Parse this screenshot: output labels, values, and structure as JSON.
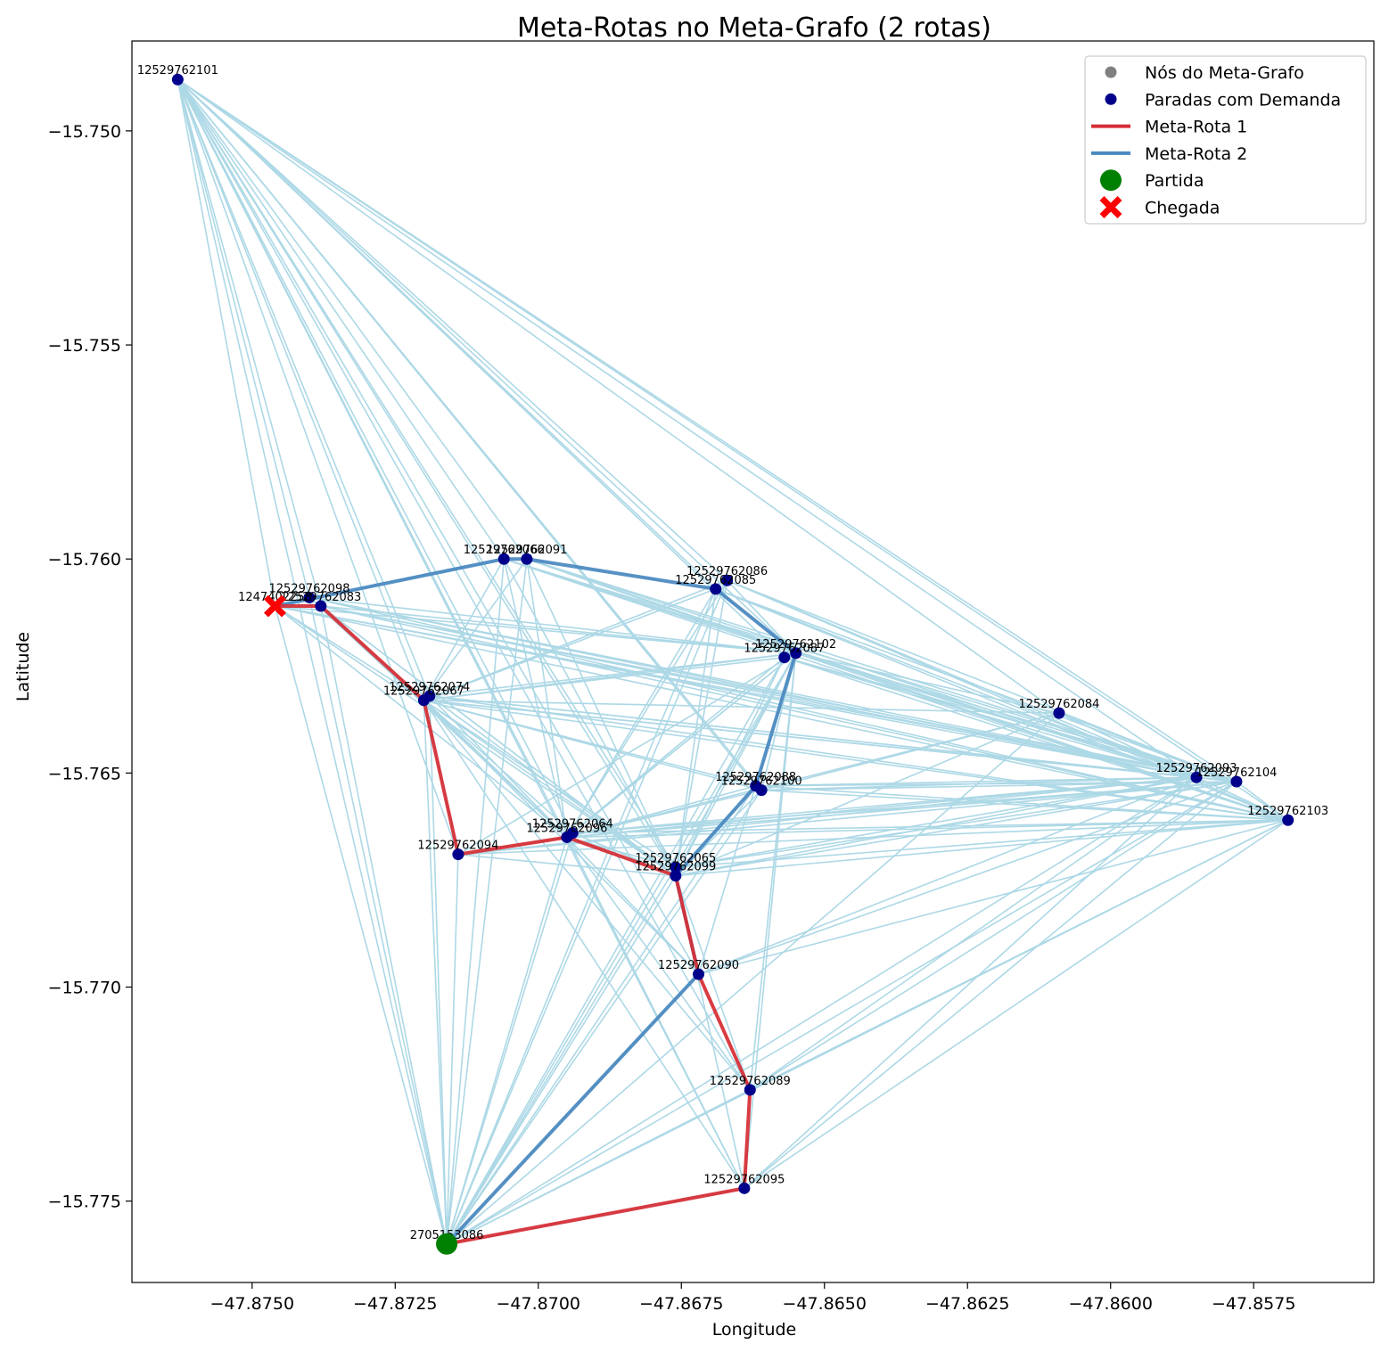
{
  "chart_data": {
    "type": "scatter",
    "title": "Meta-Rotas no Meta-Grafo (2 rotas)",
    "xlabel": "Longitude",
    "ylabel": "Latitude",
    "xlim": [
      -47.8771,
      -47.8554
    ],
    "ylim": [
      -15.7769,
      -15.7479
    ],
    "x_ticks": [
      -47.875,
      -47.8725,
      -47.87,
      -47.8675,
      -47.865,
      -47.8625,
      -47.86,
      -47.8575
    ],
    "x_tick_labels": [
      "−47.8750",
      "−47.8725",
      "−47.8700",
      "−47.8675",
      "−47.8650",
      "−47.8625",
      "−47.8600",
      "−47.8575"
    ],
    "y_ticks": [
      -15.75,
      -15.755,
      -15.76,
      -15.765,
      -15.77,
      -15.775
    ],
    "y_tick_labels": [
      "−15.750",
      "−15.755",
      "−15.760",
      "−15.765",
      "−15.770",
      "−15.775"
    ],
    "grid": false,
    "legend_position": "top-right",
    "legend": [
      {
        "label": "Nós do Meta-Grafo",
        "kind": "dot",
        "color": "#808080"
      },
      {
        "label": "Paradas com Demanda",
        "kind": "dot",
        "color": "#00008b"
      },
      {
        "label": "Meta-Rota 1",
        "kind": "line",
        "color": "#d62d35"
      },
      {
        "label": "Meta-Rota 2",
        "kind": "line",
        "color": "#4a89c0"
      },
      {
        "label": "Partida",
        "kind": "bigdot",
        "color": "#008000"
      },
      {
        "label": "Chegada",
        "kind": "cross",
        "color": "#ff0000"
      }
    ],
    "colors": {
      "edges": "#add8e6",
      "demand": "#00008b",
      "route1": "#d62d35",
      "route2": "#4a89c0",
      "start": "#008000",
      "end": "#ff0000"
    },
    "nodes": [
      {
        "id": "12529762101",
        "x": -47.8763,
        "y": -15.7488
      },
      {
        "id": "12529762098",
        "x": -47.874,
        "y": -15.7609
      },
      {
        "id": "12529762083",
        "x": -47.8738,
        "y": -15.7611
      },
      {
        "id": "1247402258",
        "x": -47.8746,
        "y": -15.7611
      },
      {
        "id": "12529762066",
        "x": -47.8706,
        "y": -15.76
      },
      {
        "id": "12529762091",
        "x": -47.8702,
        "y": -15.76
      },
      {
        "id": "12529762086",
        "x": -47.8667,
        "y": -15.7605
      },
      {
        "id": "12529762085",
        "x": -47.8669,
        "y": -15.7607
      },
      {
        "id": "12529762102",
        "x": -47.8655,
        "y": -15.7622
      },
      {
        "id": "12529762087",
        "x": -47.8657,
        "y": -15.7623
      },
      {
        "id": "12529762074",
        "x": -47.8719,
        "y": -15.7632
      },
      {
        "id": "12529762067",
        "x": -47.872,
        "y": -15.7633
      },
      {
        "id": "12529762084",
        "x": -47.8609,
        "y": -15.7636
      },
      {
        "id": "12529762088",
        "x": -47.8662,
        "y": -15.7653
      },
      {
        "id": "12529762100",
        "x": -47.8661,
        "y": -15.7654
      },
      {
        "id": "12529762093",
        "x": -47.8585,
        "y": -15.7651
      },
      {
        "id": "12529762104",
        "x": -47.8578,
        "y": -15.7652
      },
      {
        "id": "12529762103",
        "x": -47.8569,
        "y": -15.7661
      },
      {
        "id": "12529762064",
        "x": -47.8694,
        "y": -15.7664
      },
      {
        "id": "12529762096",
        "x": -47.8695,
        "y": -15.7665
      },
      {
        "id": "12529762094",
        "x": -47.8714,
        "y": -15.7669
      },
      {
        "id": "12529762065",
        "x": -47.8676,
        "y": -15.7672
      },
      {
        "id": "12529762099",
        "x": -47.8676,
        "y": -15.7674
      },
      {
        "id": "12529762090",
        "x": -47.8672,
        "y": -15.7697
      },
      {
        "id": "12529762089",
        "x": -47.8663,
        "y": -15.7724
      },
      {
        "id": "12529762095",
        "x": -47.8664,
        "y": -15.7747
      },
      {
        "id": "2705153086",
        "x": -47.8716,
        "y": -15.776
      }
    ],
    "hub_nodes": [
      "12529762101",
      "12529762093",
      "12529762104",
      "12529762103",
      "2705153086",
      "12529762096",
      "12529762067",
      "12529762099",
      "12529762102"
    ],
    "extra_edges": [
      [
        "12529762067",
        "12529762066"
      ],
      [
        "12529762067",
        "12529762091"
      ],
      [
        "12529762067",
        "12529762094"
      ],
      [
        "12529762066",
        "12529762096"
      ],
      [
        "12529762091",
        "12529762099"
      ],
      [
        "12529762086",
        "12529762096"
      ],
      [
        "12529762084",
        "12529762100"
      ],
      [
        "12529762084",
        "12529762099"
      ],
      [
        "12529762096",
        "12529762095"
      ],
      [
        "12529762096",
        "12529762089"
      ],
      [
        "12529762096",
        "12529762090"
      ],
      [
        "12529762067",
        "12529762095"
      ],
      [
        "12529762067",
        "12529762089"
      ],
      [
        "12529762099",
        "12529762088"
      ],
      [
        "2705153086",
        "12529762094"
      ],
      [
        "2705153086",
        "12529762067"
      ],
      [
        "12529762089",
        "2705153086"
      ],
      [
        "12529762099",
        "12529762103"
      ],
      [
        "12529762100",
        "12529762103"
      ],
      [
        "12529762099",
        "12529762093"
      ],
      [
        "12529762099",
        "12529762104"
      ],
      [
        "12529762066",
        "12529762067"
      ],
      [
        "1247402258",
        "12529762066"
      ],
      [
        "12529762085",
        "12529762102"
      ]
    ],
    "route1": [
      "2705153086",
      "12529762095",
      "12529762089",
      "12529762090",
      "12529762099",
      "12529762096",
      "12529762094",
      "12529762067",
      "12529762083",
      "1247402258"
    ],
    "route2": [
      "2705153086",
      "12529762090",
      "12529762099",
      "12529762088",
      "12529762102",
      "12529762085",
      "12529762091",
      "12529762066",
      "1247402258"
    ],
    "start": "2705153086",
    "end": "1247402258"
  }
}
